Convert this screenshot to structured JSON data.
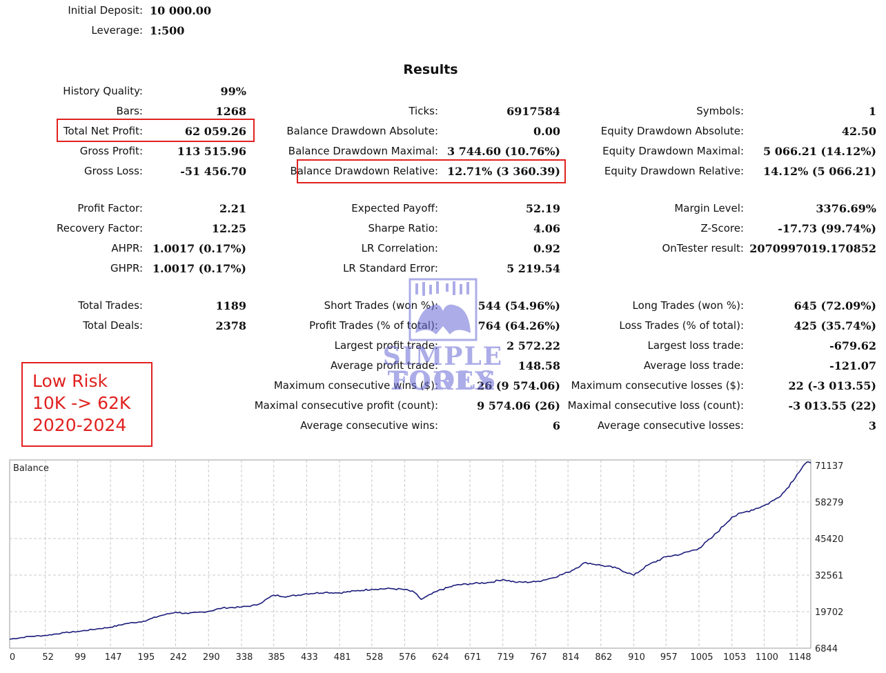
{
  "header": {
    "initial_deposit_label": "Initial Deposit:",
    "initial_deposit_value": "10 000.00",
    "leverage_label": "Leverage:",
    "leverage_value": "1:500"
  },
  "results_title": "Results",
  "col1": [
    {
      "label": "History Quality:",
      "value": "99%"
    },
    {
      "label": "Bars:",
      "value": "1268"
    },
    {
      "label": "Total Net Profit:",
      "value": "62 059.26"
    },
    {
      "label": "Gross Profit:",
      "value": "113 515.96"
    },
    {
      "label": "Gross Loss:",
      "value": "-51 456.70"
    },
    {
      "label": "Profit Factor:",
      "value": "2.21"
    },
    {
      "label": "Recovery Factor:",
      "value": "12.25"
    },
    {
      "label": "AHPR:",
      "value": "1.0017 (0.17%)"
    },
    {
      "label": "GHPR:",
      "value": "1.0017 (0.17%)"
    },
    {
      "label": "Total Trades:",
      "value": "1189"
    },
    {
      "label": "Total Deals:",
      "value": "2378"
    }
  ],
  "col2": [
    {
      "label": "Ticks:",
      "value": "6917584"
    },
    {
      "label": "Balance Drawdown Absolute:",
      "value": "0.00"
    },
    {
      "label": "Balance Drawdown Maximal:",
      "value": "3 744.60 (10.76%)"
    },
    {
      "label": "Balance Drawdown Relative:",
      "value": "12.71% (3 360.39)"
    },
    {
      "label": "Expected Payoff:",
      "value": "52.19"
    },
    {
      "label": "Sharpe Ratio:",
      "value": "4.06"
    },
    {
      "label": "LR Correlation:",
      "value": "0.92"
    },
    {
      "label": "LR Standard Error:",
      "value": "5 219.54"
    },
    {
      "label": "Short Trades (won %):",
      "value": "544 (54.96%)"
    },
    {
      "label": "Profit Trades (% of total):",
      "value": "764 (64.26%)"
    },
    {
      "label": "Largest profit trade:",
      "value": "2 572.22"
    },
    {
      "label": "Average profit trade:",
      "value": "148.58"
    },
    {
      "label": "Maximum consecutive wins ($):",
      "value": "26 (9 574.06)"
    },
    {
      "label": "Maximal consecutive profit (count):",
      "value": "9 574.06 (26)"
    },
    {
      "label": "Average consecutive wins:",
      "value": "6"
    }
  ],
  "col3": [
    {
      "label": "Symbols:",
      "value": "1"
    },
    {
      "label": "Equity Drawdown Absolute:",
      "value": "42.50"
    },
    {
      "label": "Equity Drawdown Maximal:",
      "value": "5 066.21 (14.12%)"
    },
    {
      "label": "Equity Drawdown Relative:",
      "value": "14.12% (5 066.21)"
    },
    {
      "label": "Margin Level:",
      "value": "3376.69%"
    },
    {
      "label": "Z-Score:",
      "value": "-17.73 (99.74%)"
    },
    {
      "label": "OnTester result:",
      "value": "2070997019.170852"
    },
    {
      "label": "Long Trades (won %):",
      "value": "645 (72.09%)"
    },
    {
      "label": "Loss Trades (% of total):",
      "value": "425 (35.74%)"
    },
    {
      "label": "Largest loss trade:",
      "value": "-679.62"
    },
    {
      "label": "Average loss trade:",
      "value": "-121.07"
    },
    {
      "label": "Maximum consecutive losses ($):",
      "value": "22 (-3 013.55)"
    },
    {
      "label": "Maximal consecutive loss (count):",
      "value": "-3 013.55 (22)"
    },
    {
      "label": "Average consecutive losses:",
      "value": "3"
    }
  ],
  "note": {
    "line1": "Low Risk",
    "line2": "10K -> 62K",
    "line3": "2020-2024"
  },
  "watermark": {
    "line1": "SIMPLE FOREX",
    "line2": "TOOLS"
  },
  "colors": {
    "highlight": "#e0211f",
    "line": "#1a1a7a",
    "watermark": "#6a6ad6"
  },
  "chart_data": {
    "type": "line",
    "title": "Balance",
    "series": [
      {
        "name": "Balance",
        "x": [
          0,
          30,
          52,
          80,
          99,
          130,
          147,
          170,
          195,
          220,
          242,
          260,
          290,
          310,
          338,
          360,
          385,
          405,
          433,
          460,
          481,
          505,
          528,
          555,
          576,
          590,
          600,
          624,
          650,
          671,
          700,
          719,
          740,
          767,
          790,
          814,
          840,
          862,
          885,
          910,
          930,
          957,
          980,
          1005,
          1025,
          1053,
          1075,
          1100,
          1115,
          1130,
          1148,
          1160,
          1168
        ],
        "y": [
          10000,
          11000,
          11300,
          12300,
          12700,
          13700,
          14200,
          15500,
          16300,
          18300,
          19500,
          19000,
          19800,
          21000,
          21300,
          22000,
          25500,
          25000,
          26000,
          26500,
          26300,
          27000,
          27600,
          27800,
          27500,
          26500,
          24000,
          27000,
          29000,
          29500,
          30000,
          31000,
          30000,
          30200,
          31500,
          33500,
          37000,
          36000,
          35000,
          32500,
          36000,
          39000,
          40000,
          42000,
          46000,
          53000,
          55000,
          57000,
          59000,
          62000,
          68000,
          71800,
          72000
        ]
      }
    ],
    "x_ticks": [
      "0",
      "52",
      "99",
      "147",
      "195",
      "242",
      "290",
      "338",
      "385",
      "433",
      "481",
      "528",
      "576",
      "624",
      "671",
      "719",
      "767",
      "814",
      "862",
      "910",
      "957",
      "1005",
      "1053",
      "1100",
      "1148"
    ],
    "y_ticks": [
      "71137",
      "58279",
      "45420",
      "32561",
      "19702",
      "6844"
    ],
    "ylim": [
      6844,
      71137
    ],
    "xlim": [
      0,
      1168
    ],
    "grid": true
  }
}
